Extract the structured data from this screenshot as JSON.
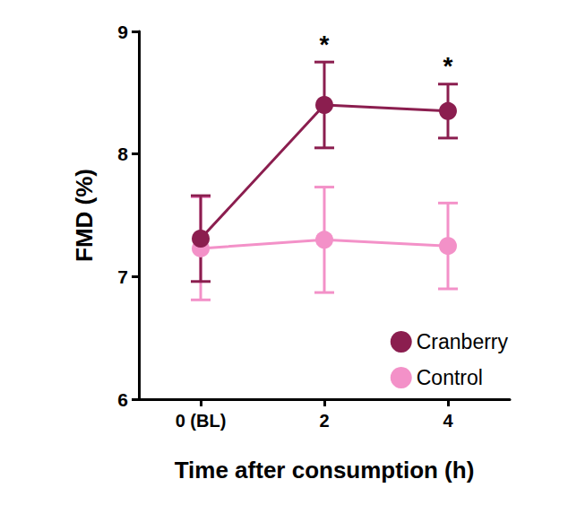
{
  "chart_data": {
    "type": "line",
    "x_label": "Time after consumption (h)",
    "y_label": "FMD (%)",
    "categories": [
      "0 (BL)",
      "2",
      "4"
    ],
    "series": [
      {
        "name": "Control",
        "color": "#f391c8",
        "values": [
          7.23,
          7.3,
          7.25
        ],
        "errors": [
          0.42,
          0.43,
          0.35
        ],
        "marker": "circle"
      },
      {
        "name": "Cranberry",
        "color": "#8b1e4f",
        "values": [
          7.31,
          8.4,
          8.35
        ],
        "errors": [
          0.35,
          0.35,
          0.22
        ],
        "marker": "circle"
      }
    ],
    "ylim": [
      6,
      9
    ],
    "yticks": [
      6,
      7,
      8,
      9
    ],
    "grid": false,
    "legend": "lower right",
    "annotations": [
      {
        "text": "*",
        "category": "2",
        "series": "Cranberry"
      },
      {
        "text": "*",
        "category": "4",
        "series": "Cranberry"
      }
    ]
  }
}
